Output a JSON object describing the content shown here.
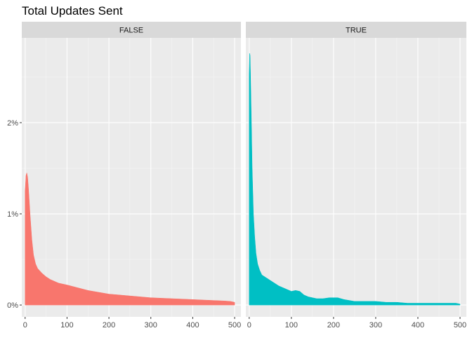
{
  "chart_data": {
    "type": "area",
    "title": "Total Updates Sent",
    "xlabel": "",
    "ylabel": "",
    "xlim": [
      -8,
      515
    ],
    "ylim": [
      -0.0013,
      0.0293
    ],
    "x_ticks": [
      0,
      100,
      200,
      300,
      400,
      500
    ],
    "x_tick_labels": [
      "0",
      "100",
      "200",
      "300",
      "400",
      "500"
    ],
    "y_ticks": [
      0,
      0.01,
      0.02
    ],
    "y_tick_labels": [
      "0%",
      "1%",
      "2%"
    ],
    "grid": true,
    "legend": "none",
    "panels": [
      {
        "label": "FALSE",
        "color": "#F8766D",
        "series": {
          "x": [
            0,
            2,
            4,
            6,
            8,
            12,
            16,
            20,
            25,
            30,
            40,
            50,
            60,
            70,
            80,
            90,
            100,
            125,
            150,
            175,
            200,
            225,
            250,
            275,
            300,
            325,
            350,
            375,
            400,
            425,
            450,
            475,
            490,
            500
          ],
          "y": [
            0.0125,
            0.0142,
            0.0145,
            0.014,
            0.0128,
            0.0098,
            0.0072,
            0.0055,
            0.0045,
            0.004,
            0.0035,
            0.0031,
            0.0028,
            0.0026,
            0.0024,
            0.0023,
            0.0022,
            0.0019,
            0.0016,
            0.0014,
            0.0012,
            0.0011,
            0.001,
            0.0009,
            0.0008,
            0.00075,
            0.0007,
            0.00065,
            0.0006,
            0.00055,
            0.0005,
            0.00045,
            0.0004,
            0.0003
          ]
        }
      },
      {
        "label": "TRUE",
        "color": "#00BFC4",
        "series": {
          "x": [
            0,
            1,
            2,
            3,
            5,
            7,
            10,
            13,
            16,
            20,
            25,
            30,
            40,
            50,
            60,
            70,
            80,
            90,
            100,
            110,
            120,
            130,
            140,
            150,
            160,
            175,
            190,
            200,
            210,
            225,
            250,
            275,
            300,
            325,
            350,
            375,
            400,
            425,
            450,
            475,
            490,
            500
          ],
          "y": [
            0.0252,
            0.0276,
            0.0274,
            0.0255,
            0.0205,
            0.015,
            0.01,
            0.0075,
            0.0057,
            0.0045,
            0.0038,
            0.0033,
            0.003,
            0.0027,
            0.0024,
            0.0021,
            0.0019,
            0.0017,
            0.0015,
            0.0016,
            0.0015,
            0.0011,
            0.0009,
            0.0008,
            0.0007,
            0.0007,
            0.0008,
            0.0008,
            0.0008,
            0.0006,
            0.0004,
            0.0004,
            0.0004,
            0.0003,
            0.0003,
            0.0002,
            0.0002,
            0.0002,
            0.0002,
            0.0002,
            0.0002,
            0.0001
          ]
        }
      }
    ]
  }
}
